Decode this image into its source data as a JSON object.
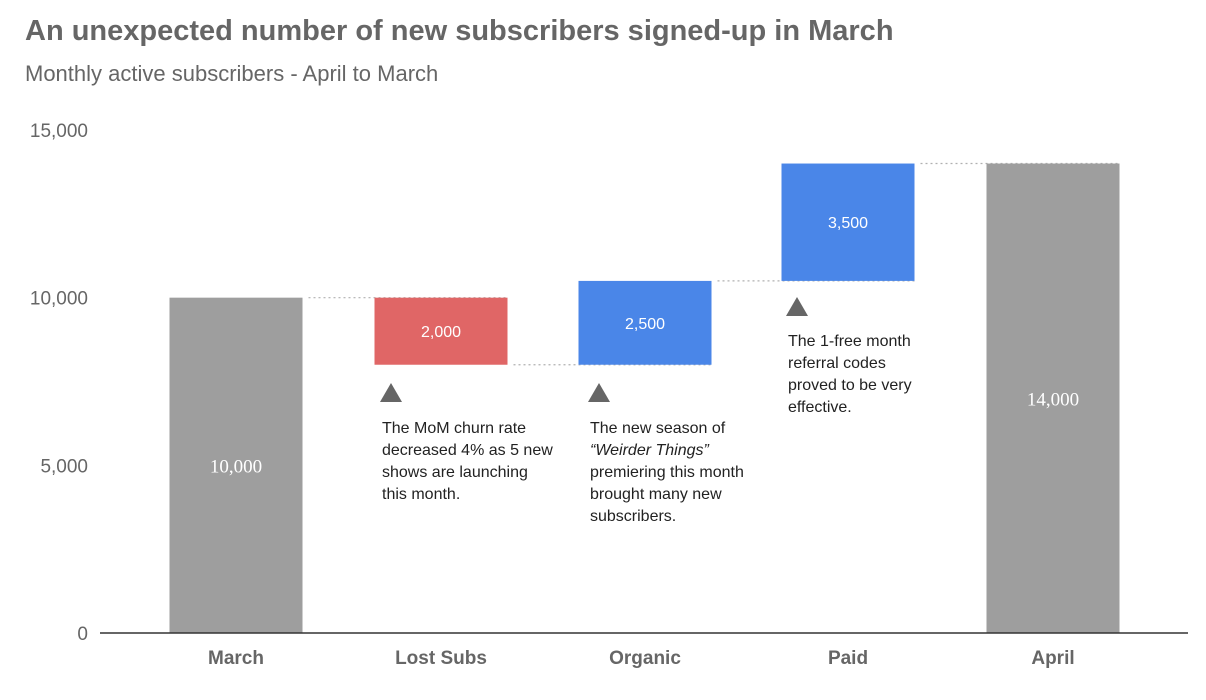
{
  "title": "An unexpected number of new subscribers signed-up in March",
  "subtitle": "Monthly active subscribers - April to March",
  "colors": {
    "total": "#9e9e9e",
    "decrease": "#e06666",
    "increase": "#4a86e8",
    "text": "#666666",
    "axis": "#333333",
    "connector": "#b0b0b0"
  },
  "chart_data": {
    "type": "bar",
    "subtype": "waterfall",
    "title": "An unexpected number of new subscribers signed-up in March",
    "subtitle": "Monthly active subscribers - April to March",
    "categories": [
      "March",
      "Lost Subs",
      "Organic",
      "Paid",
      "April"
    ],
    "bars": [
      {
        "category": "March",
        "kind": "total",
        "start": 0,
        "end": 10000,
        "label": "10,000"
      },
      {
        "category": "Lost Subs",
        "kind": "decrease",
        "start": 10000,
        "end": 8000,
        "label": "2,000"
      },
      {
        "category": "Organic",
        "kind": "increase",
        "start": 8000,
        "end": 10500,
        "label": "2,500"
      },
      {
        "category": "Paid",
        "kind": "increase",
        "start": 10500,
        "end": 14000,
        "label": "3,500"
      },
      {
        "category": "April",
        "kind": "total",
        "start": 0,
        "end": 14000,
        "label": "14,000"
      }
    ],
    "ylim": [
      0,
      15000
    ],
    "yticks": [
      0,
      5000,
      10000,
      15000
    ],
    "ytick_labels": [
      "0",
      "5,000",
      "10,000",
      "15,000"
    ],
    "grid": false,
    "connectors": true,
    "xlabel": "",
    "ylabel": ""
  },
  "annotations": {
    "lost_subs": "The MoM churn rate decreased 4% as 5 new shows are launching this month.",
    "organic_line1": "The new season of",
    "organic_emph": "“Weirder Things”",
    "organic_line2": "premiering this month brought many new subscribers.",
    "paid": "The 1-free month referral codes proved to be very effective."
  }
}
